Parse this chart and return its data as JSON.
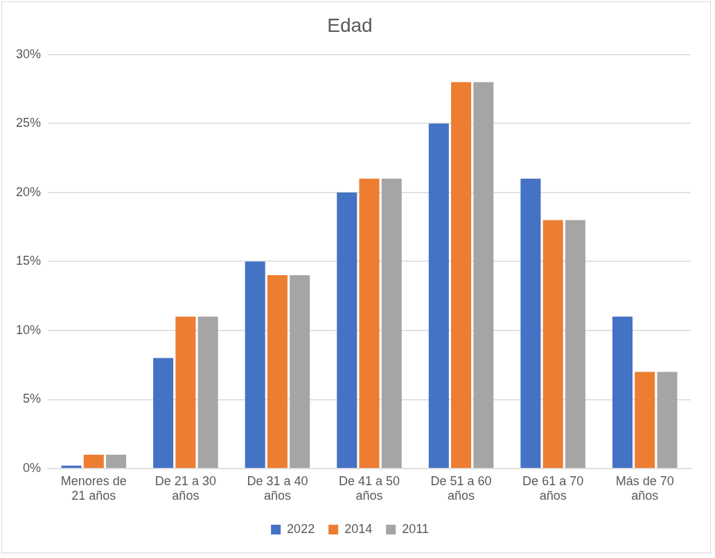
{
  "chart_data": {
    "type": "bar",
    "title": "Edad",
    "categories": [
      "Menores de 21 años",
      "De 21 a 30 años",
      "De 31 a 40 años",
      "De 41 a 50 años",
      "De 51 a 60 años",
      "De 61 a 70 años",
      "Más de 70 años"
    ],
    "series": [
      {
        "name": "2022",
        "color": "#4472c4",
        "values": [
          0.2,
          8,
          15,
          20,
          25,
          21,
          11
        ]
      },
      {
        "name": "2014",
        "color": "#ed7d31",
        "values": [
          1,
          11,
          14,
          21,
          28,
          18,
          7
        ]
      },
      {
        "name": "2011",
        "color": "#a5a5a5",
        "values": [
          1,
          11,
          14,
          21,
          28,
          18,
          7
        ]
      }
    ],
    "ylim": [
      0,
      30
    ],
    "yticks": [
      {
        "value": 0,
        "label": "0%"
      },
      {
        "value": 5,
        "label": "5%"
      },
      {
        "value": 10,
        "label": "10%"
      },
      {
        "value": 15,
        "label": "15%"
      },
      {
        "value": 20,
        "label": "20%"
      },
      {
        "value": 25,
        "label": "25%"
      },
      {
        "value": 30,
        "label": "30%"
      }
    ],
    "grid": "y",
    "legend": "bottom"
  }
}
